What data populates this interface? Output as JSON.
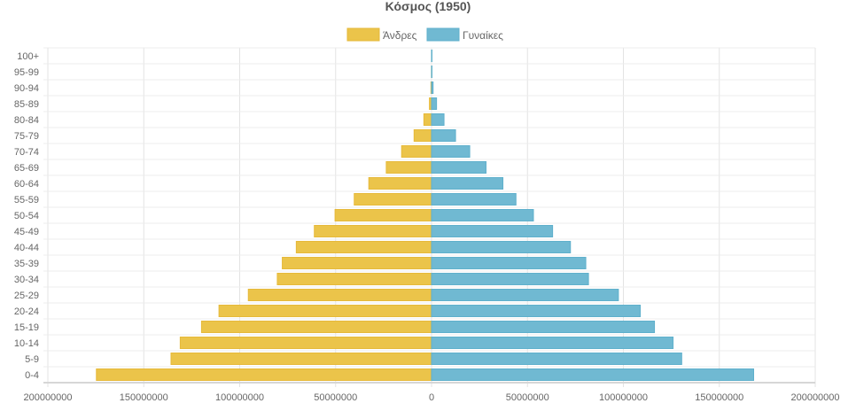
{
  "chart_data": {
    "type": "bar",
    "orientation": "horizontal-pyramid",
    "title": "Κόσμος (1950)",
    "legend_position": "top",
    "categories": [
      "100+",
      "95-99",
      "90-94",
      "85-89",
      "80-84",
      "75-79",
      "70-74",
      "65-69",
      "60-64",
      "55-59",
      "50-54",
      "45-49",
      "40-44",
      "35-39",
      "30-34",
      "25-29",
      "20-24",
      "15-19",
      "10-14",
      "5-9",
      "0-4"
    ],
    "series": [
      {
        "name": "Άνδρες",
        "color": "#ebc44a",
        "border": "#e6b93a",
        "side": "left",
        "values": [
          10000,
          50000,
          300000,
          1100000,
          4000000,
          9100000,
          15600000,
          23600000,
          32700000,
          40300000,
          50300000,
          61100000,
          70500000,
          77800000,
          80400000,
          95500000,
          110800000,
          119900000,
          131000000,
          135800000,
          174700000
        ]
      },
      {
        "name": "Γυναίκες",
        "color": "#70b9d2",
        "border": "#5fb0cc",
        "side": "right",
        "values": [
          20000,
          150000,
          800000,
          2600000,
          6500000,
          12500000,
          19900000,
          28400000,
          37200000,
          44000000,
          53100000,
          63100000,
          72400000,
          80400000,
          81800000,
          97400000,
          108800000,
          116200000,
          125900000,
          130400000,
          167900000
        ]
      }
    ],
    "xlim": [
      -200000000,
      200000000
    ],
    "x_ticks": [
      -200000000,
      -150000000,
      -100000000,
      -50000000,
      0,
      50000000,
      100000000,
      150000000,
      200000000
    ],
    "x_tick_labels": [
      "200000000",
      "150000000",
      "100000000",
      "50000000",
      "0",
      "50000000",
      "100000000",
      "150000000",
      "200000000"
    ],
    "grid": true
  }
}
